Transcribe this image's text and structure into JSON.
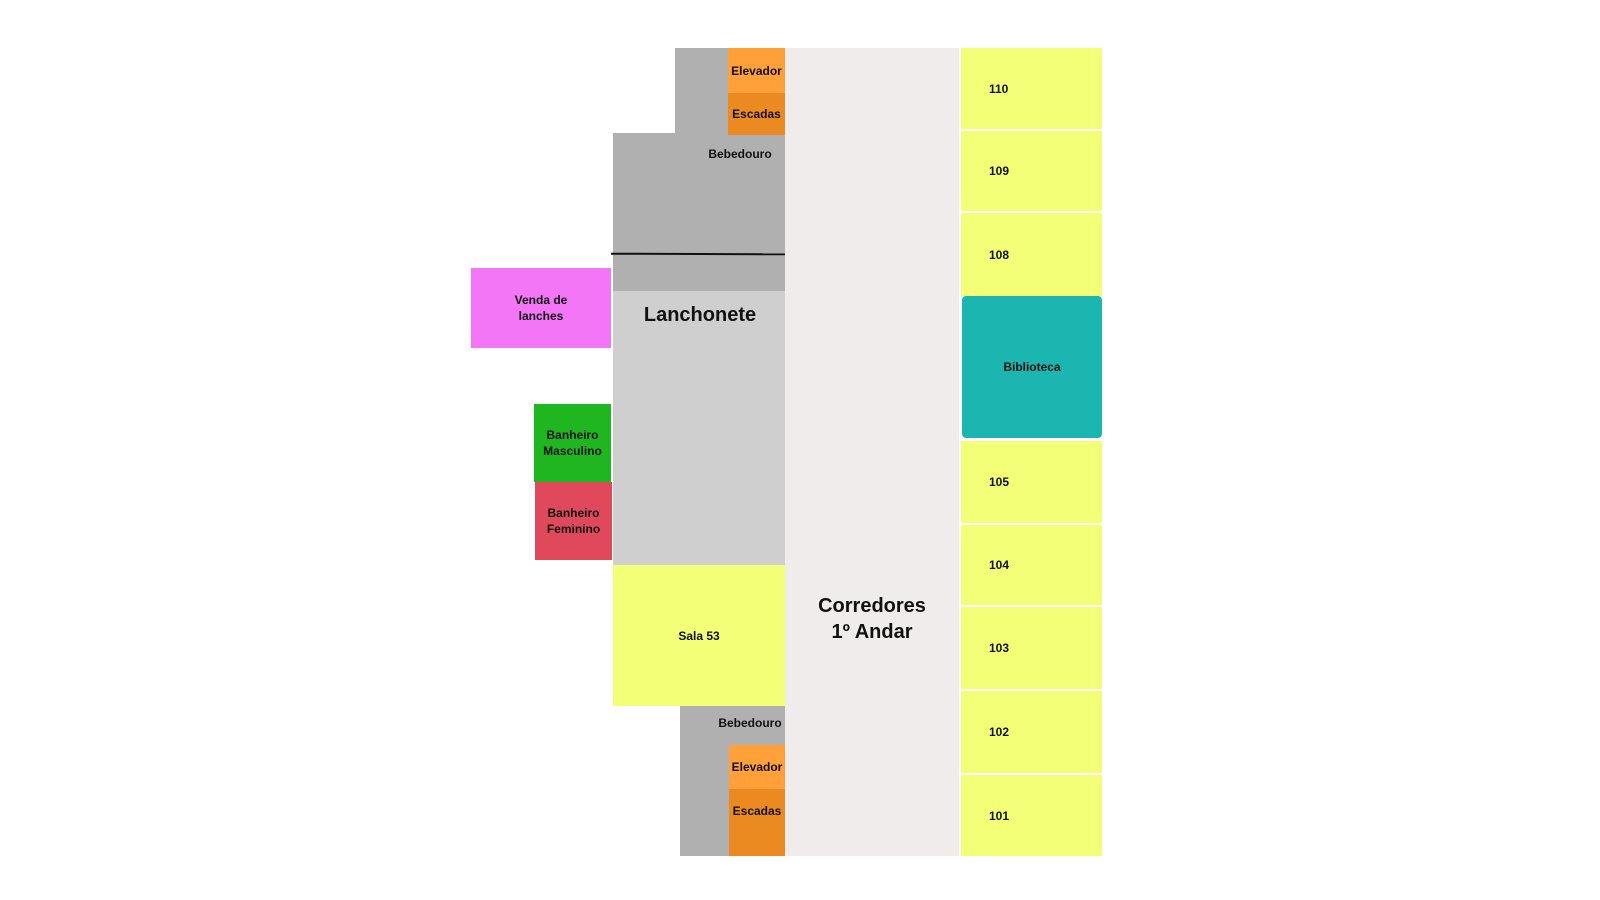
{
  "title": "Corredores\n1º Andar",
  "title_lines": [
    "Corredores",
    "1º Andar"
  ],
  "colors": {
    "gray_dark": "#b0b0b0",
    "gray_light": "#cfcfcf",
    "corridor": "#f0ecec",
    "room_yellow": "#f3ff77",
    "elevator_orange": "#ffa038",
    "stairs_orange": "#ec8a22",
    "snack_magenta": "#f276f6",
    "mens_green": "#1fb61f",
    "womens_red": "#e0495c",
    "library_teal": "#1bb6b0"
  },
  "left_wing": {
    "top": {
      "elevator": "Elevador",
      "stairs": "Escadas",
      "water_fountain": "Bebedouro"
    },
    "cafeteria": "Lanchonete",
    "snack_sales": "Venda de lanches",
    "mens_bathroom": "Banheiro Masculino",
    "womens_bathroom": "Banheiro Feminino",
    "room_53": "Sala 53",
    "bottom": {
      "water_fountain": "Bebedouro",
      "elevator": "Elevador",
      "stairs": "Escadas"
    }
  },
  "right_wing": {
    "rooms_top": [
      "110",
      "109",
      "108"
    ],
    "library": "Biblioteca",
    "rooms_bottom": [
      "105",
      "104",
      "103",
      "102",
      "101"
    ]
  }
}
